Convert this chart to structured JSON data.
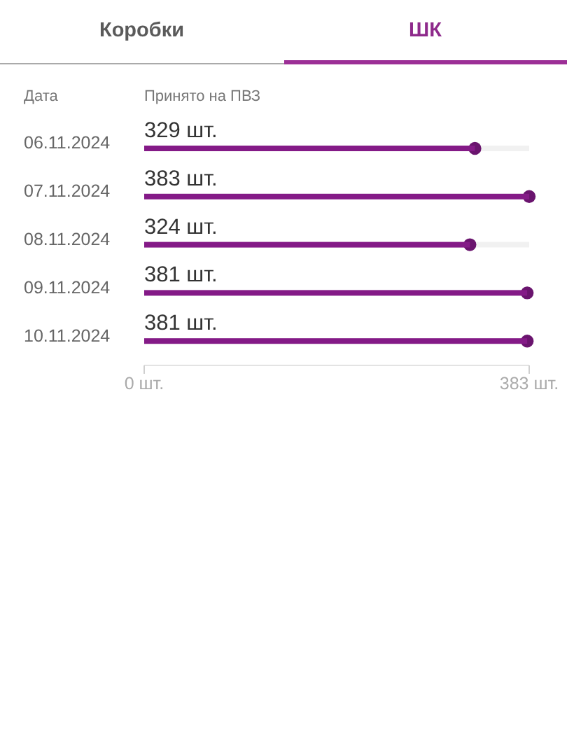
{
  "chart_data": {
    "type": "bar",
    "orientation": "horizontal",
    "title": "ШК",
    "annotations": [
      "Коробки"
    ],
    "ylabel": "Дата",
    "xlabel": "Принято на ПВЗ",
    "categories": [
      "06.11.2024",
      "07.11.2024",
      "08.11.2024",
      "09.11.2024",
      "10.11.2024"
    ],
    "values": [
      329,
      383,
      324,
      381,
      381
    ],
    "value_labels": [
      "329 шт.",
      "383 шт.",
      "324 шт.",
      "381 шт.",
      "381 шт."
    ],
    "color": "#841a87",
    "xlim": [
      0,
      383
    ],
    "xticks": [
      {
        "value": 0,
        "label": "0 шт."
      },
      {
        "value": 383,
        "label": "383 шт."
      }
    ]
  }
}
